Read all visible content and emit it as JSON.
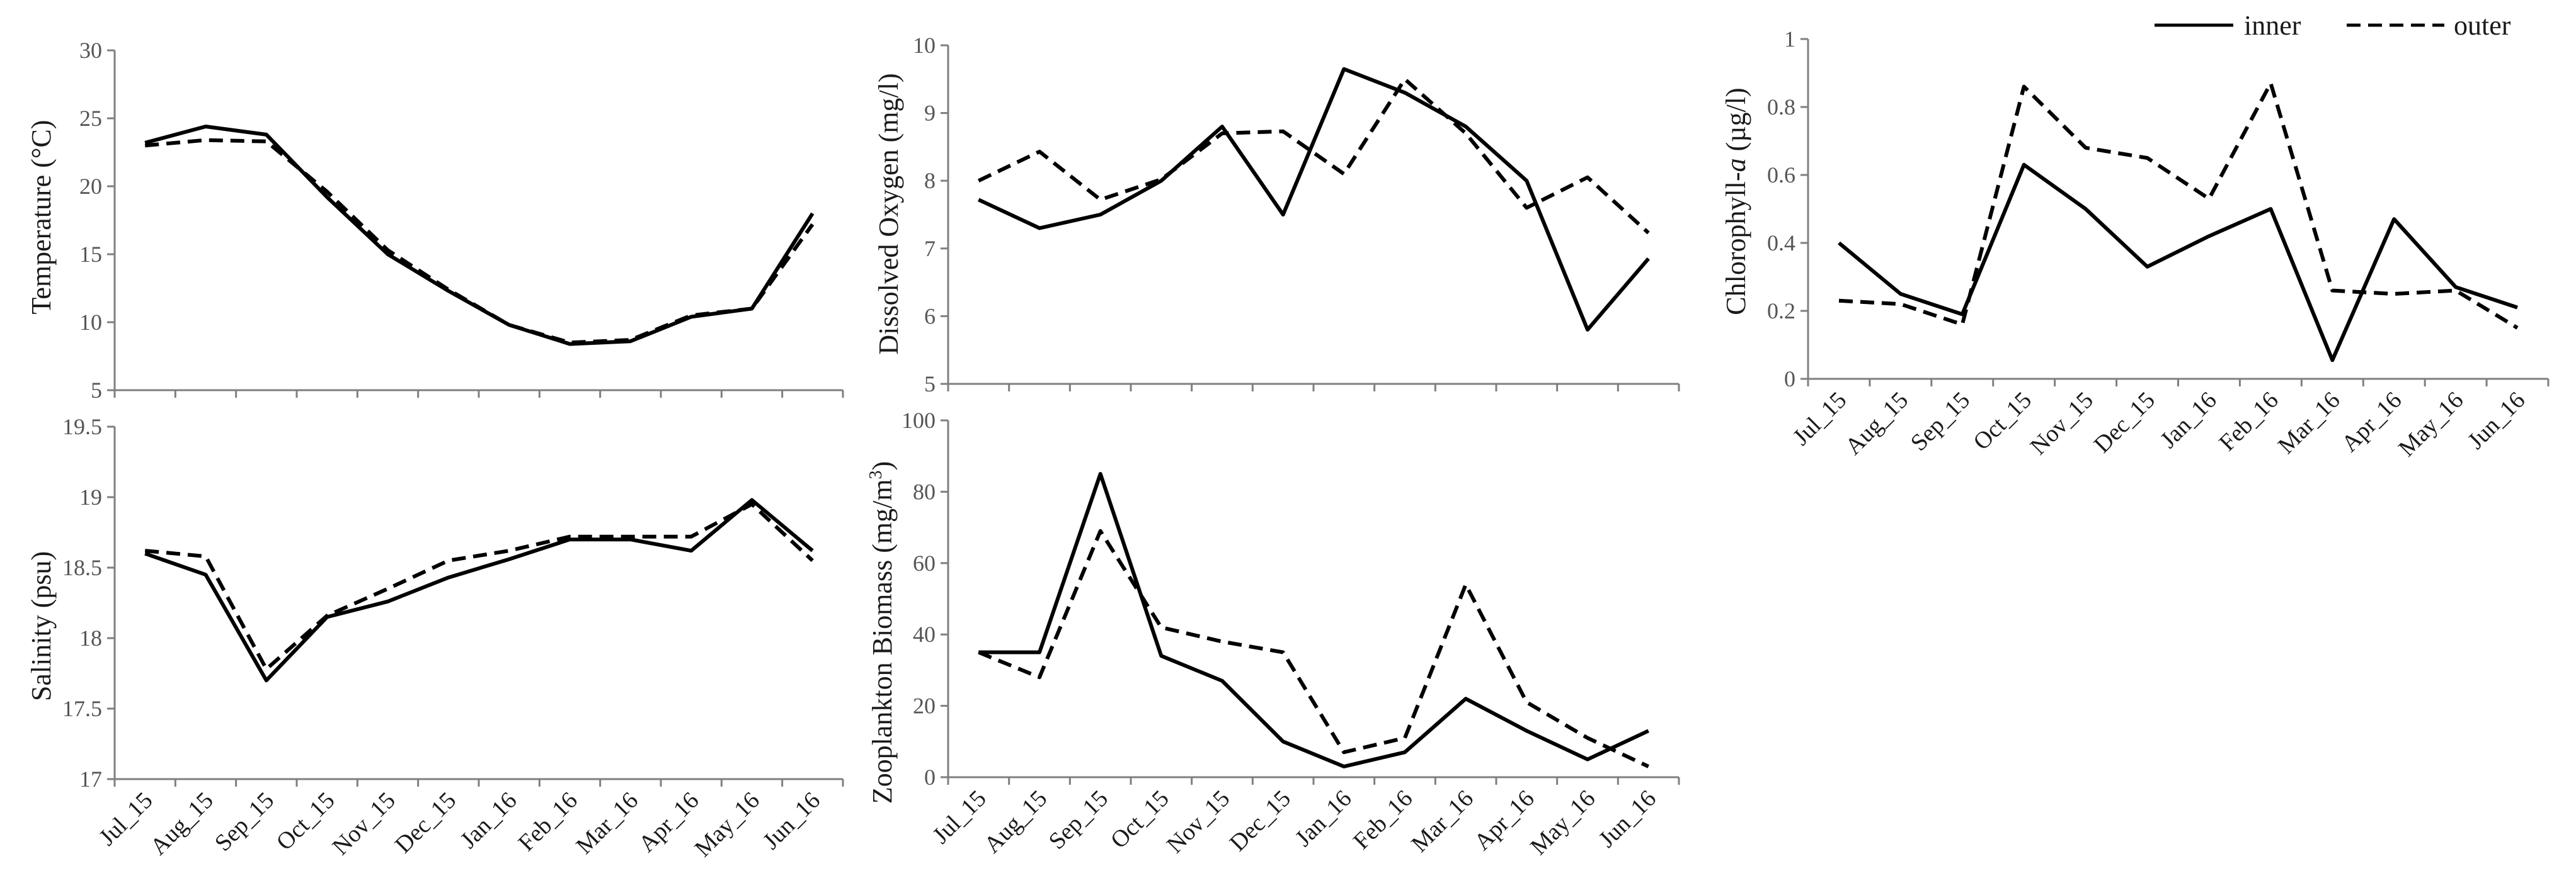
{
  "legend": {
    "entries": [
      {
        "label": "inner",
        "style": "solid"
      },
      {
        "label": "outer",
        "style": "dashed"
      }
    ],
    "placement": "top-right"
  },
  "colors": {
    "line": "#000000",
    "axis": "#7f7f7f",
    "tick_text": "#555555",
    "text": "#1a1a1a"
  },
  "chart_data": [
    {
      "id": "temperature",
      "type": "line",
      "ylabel": "Temperature (°C)",
      "categories": [
        "Jul_15",
        "Aug_15",
        "Sep_15",
        "Oct_15",
        "Nov_15",
        "Dec_15",
        "Jan_16",
        "Feb_16",
        "Mar_16",
        "Apr_16",
        "May_16",
        "Jun_16"
      ],
      "ylim": [
        5,
        30
      ],
      "yticks": [
        5,
        10,
        15,
        20,
        25,
        30
      ],
      "ytick_labels": [
        "5",
        "10",
        "15",
        "20",
        "25",
        "30"
      ],
      "series": [
        {
          "name": "inner",
          "values": [
            23.2,
            24.4,
            23.8,
            19.2,
            15.0,
            12.3,
            9.8,
            8.4,
            8.6,
            10.4,
            11.0,
            18.0
          ]
        },
        {
          "name": "outer",
          "values": [
            23.0,
            23.4,
            23.3,
            19.6,
            15.3,
            12.4,
            9.8,
            8.5,
            8.7,
            10.5,
            11.0,
            17.2
          ]
        }
      ]
    },
    {
      "id": "dissolved_oxygen",
      "type": "line",
      "ylabel": "Dissolved Oxygen (mg/l)",
      "categories": [
        "Jul_15",
        "Aug_15",
        "Sep_15",
        "Oct_15",
        "Nov_15",
        "Dec_15",
        "Jan_16",
        "Feb_16",
        "Mar_16",
        "Apr_16",
        "May_16",
        "Jun_16"
      ],
      "ylim": [
        5,
        10
      ],
      "yticks": [
        5,
        6,
        7,
        8,
        9,
        10
      ],
      "ytick_labels": [
        "5",
        "6",
        "7",
        "8",
        "9",
        "10"
      ],
      "series": [
        {
          "name": "inner",
          "values": [
            7.72,
            7.3,
            7.5,
            8.0,
            8.8,
            7.5,
            9.65,
            9.3,
            8.8,
            8.0,
            5.8,
            6.85
          ]
        },
        {
          "name": "outer",
          "values": [
            8.0,
            8.43,
            7.72,
            8.02,
            8.7,
            8.73,
            8.1,
            9.5,
            8.7,
            7.6,
            8.05,
            7.23
          ]
        }
      ]
    },
    {
      "id": "chlorophyll",
      "type": "line",
      "ylabel": "Chlorophyll-a (µg/l)",
      "ylabel_italic_part": "a",
      "categories": [
        "Jul_15",
        "Aug_15",
        "Sep_15",
        "Oct_15",
        "Nov_15",
        "Dec_15",
        "Jan_16",
        "Feb_16",
        "Mar_16",
        "Apr_16",
        "May_16",
        "Jun_16"
      ],
      "ylim": [
        0,
        1
      ],
      "yticks": [
        0,
        0.2,
        0.4,
        0.6,
        0.8,
        1
      ],
      "ytick_labels": [
        "0",
        "0.2",
        "0.4",
        "0.6",
        "0.8",
        "1"
      ],
      "series": [
        {
          "name": "inner",
          "values": [
            0.4,
            0.25,
            0.19,
            0.63,
            0.5,
            0.33,
            0.42,
            0.5,
            0.055,
            0.47,
            0.27,
            0.21
          ]
        },
        {
          "name": "outer",
          "values": [
            0.23,
            0.22,
            0.16,
            0.86,
            0.68,
            0.65,
            0.53,
            0.87,
            0.26,
            0.25,
            0.26,
            0.15
          ]
        }
      ]
    },
    {
      "id": "salinity",
      "type": "line",
      "ylabel": "Salinity (psu)",
      "categories": [
        "Jul_15",
        "Aug_15",
        "Sep_15",
        "Oct_15",
        "Nov_15",
        "Dec_15",
        "Jan_16",
        "Feb_16",
        "Mar_16",
        "Apr_16",
        "May_16",
        "Jun_16"
      ],
      "ylim": [
        17,
        19.5
      ],
      "yticks": [
        17,
        17.5,
        18,
        18.5,
        19,
        19.5
      ],
      "ytick_labels": [
        "17",
        "17.5",
        "18",
        "18.5",
        "19",
        "19.5"
      ],
      "series": [
        {
          "name": "inner",
          "values": [
            18.6,
            18.45,
            17.7,
            18.15,
            18.26,
            18.43,
            18.56,
            18.7,
            18.7,
            18.62,
            18.98,
            18.62
          ]
        },
        {
          "name": "outer",
          "values": [
            18.62,
            18.58,
            17.78,
            18.16,
            18.35,
            18.55,
            18.62,
            18.72,
            18.72,
            18.72,
            18.95,
            18.55
          ]
        }
      ]
    },
    {
      "id": "zooplankton",
      "type": "line",
      "ylabel": "Zooplankton Biomass (mg/m³)",
      "ylabel_superscript": "3",
      "categories": [
        "Jul_15",
        "Aug_15",
        "Sep_15",
        "Oct_15",
        "Nov_15",
        "Dec_15",
        "Jan_16",
        "Feb_16",
        "Mar_16",
        "Apr_16",
        "May_16",
        "Jun_16"
      ],
      "ylim": [
        0,
        100
      ],
      "yticks": [
        0,
        20,
        40,
        60,
        80,
        100
      ],
      "ytick_labels": [
        "0",
        "20",
        "40",
        "60",
        "80",
        "100"
      ],
      "series": [
        {
          "name": "inner",
          "values": [
            35,
            35,
            85,
            34,
            27,
            10,
            3,
            7,
            22,
            13,
            5,
            13
          ]
        },
        {
          "name": "outer",
          "values": [
            35,
            28,
            69,
            42,
            38,
            35,
            7,
            11,
            54,
            21,
            11,
            3
          ]
        }
      ]
    }
  ]
}
